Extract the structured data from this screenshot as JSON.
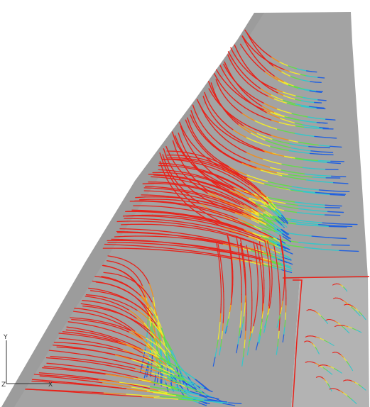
{
  "scene": {
    "background_color": "#ffffff",
    "surface_color": "#a3a3a3",
    "surface_shade_color": "#8f8f8f",
    "lower_panel_color": "#b3b3b3",
    "streamline_colormap": [
      "#e8221a",
      "#f28f1d",
      "#f1ea2b",
      "#63dc4a",
      "#36c6c9",
      "#1f5fe0"
    ],
    "streamline_palette_note_icon": "velocity-streamline-colormap"
  },
  "axes_triad": {
    "y_label": "Y",
    "z_label": "Z",
    "x_label": "X"
  }
}
